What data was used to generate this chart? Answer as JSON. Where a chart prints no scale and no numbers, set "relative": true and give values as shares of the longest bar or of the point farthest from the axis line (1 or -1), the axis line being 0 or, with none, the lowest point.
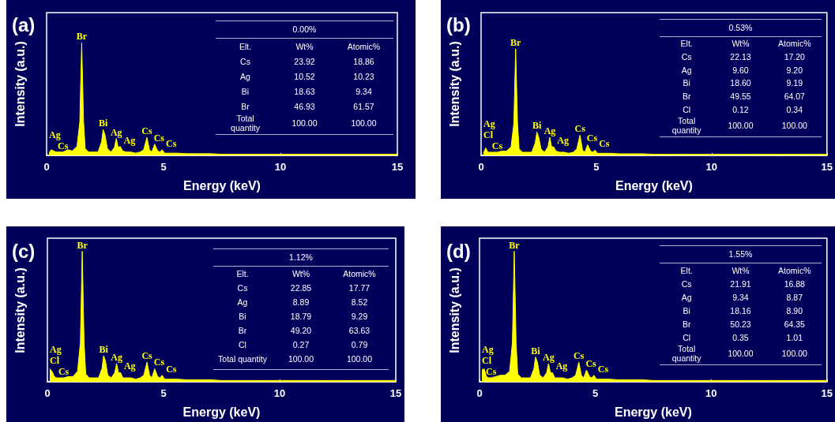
{
  "chart_data": [
    {
      "type": "area",
      "title": "(a)",
      "xlabel": "Energy (keV)",
      "ylabel": "Intensity (a.u.)",
      "relative": true,
      "xlim": [
        0,
        15
      ],
      "xticks": [
        0,
        5,
        10,
        15
      ],
      "x": [
        0.1,
        0.2,
        0.3,
        0.4,
        0.5,
        0.7,
        0.9,
        1.1,
        1.3,
        1.42,
        1.5,
        1.58,
        1.65,
        1.8,
        2.0,
        2.2,
        2.35,
        2.42,
        2.5,
        2.6,
        2.75,
        2.9,
        2.98,
        3.06,
        3.15,
        3.25,
        3.4,
        3.6,
        3.8,
        4.0,
        4.15,
        4.29,
        4.4,
        4.5,
        4.62,
        4.75,
        4.85,
        4.94,
        5.05,
        5.3,
        5.6,
        6,
        6.5,
        7,
        7.5,
        8,
        9,
        10,
        11,
        12,
        13,
        14,
        15
      ],
      "series": [
        {
          "color": "#ffff00",
          "values": [
            0.02,
            0.05,
            0.04,
            0.03,
            0.03,
            0.03,
            0.05,
            0.04,
            0.08,
            0.3,
            1,
            0.3,
            0.06,
            0.03,
            0.03,
            0.03,
            0.12,
            0.23,
            0.18,
            0.06,
            0.03,
            0.07,
            0.15,
            0.07,
            0.08,
            0.04,
            0.03,
            0.03,
            0.02,
            0.03,
            0.05,
            0.16,
            0.05,
            0.03,
            0.1,
            0.04,
            0.03,
            0.05,
            0.02,
            0.02,
            0.02,
            0.015,
            0.015,
            0.015,
            0.01,
            0.01,
            0.01,
            0.01,
            0.01,
            0.01,
            0.01,
            0.01,
            0.01
          ]
        }
      ],
      "annotations": [
        {
          "text": "Br",
          "x": 1.5,
          "y": 1
        },
        {
          "text": "Bi",
          "x": 2.42,
          "y": 0.23
        },
        {
          "text": "Ag",
          "x": 2.98,
          "y": 0.15
        },
        {
          "text": "Ag",
          "x": 3.15,
          "y": 0.08
        },
        {
          "text": "Cs",
          "x": 4.29,
          "y": 0.16
        },
        {
          "text": "Cs",
          "x": 4.62,
          "y": 0.1
        },
        {
          "text": "Cs",
          "x": 4.94,
          "y": 0.05
        },
        {
          "text": "Cs",
          "x": 0.7,
          "y": 0.03
        },
        {
          "text": "Ag",
          "x": 0.2,
          "y": 0.05
        },
        "0.00%",
        "Elt.",
        "Wt%",
        "Atomic%",
        "Cs",
        "23.92",
        "18.86",
        "Ag",
        "10.52",
        "10.23",
        "Bi",
        "18.63",
        "9.34",
        "Br",
        "46.93",
        "61.57",
        "Total quantity",
        "100.00",
        "100.00"
      ]
    },
    {
      "type": "area",
      "title": "(b)",
      "xlabel": "Energy (keV)",
      "ylabel": "Intensity (a.u.)",
      "relative": true,
      "xlim": [
        0,
        15
      ],
      "xticks": [
        0,
        5,
        10,
        15
      ],
      "x": [
        0.1,
        0.2,
        0.3,
        0.4,
        0.5,
        0.7,
        0.9,
        1.1,
        1.3,
        1.42,
        1.5,
        1.58,
        1.65,
        1.8,
        2.0,
        2.2,
        2.35,
        2.42,
        2.5,
        2.6,
        2.75,
        2.9,
        2.98,
        3.06,
        3.15,
        3.25,
        3.4,
        3.6,
        3.8,
        4.0,
        4.15,
        4.29,
        4.4,
        4.5,
        4.62,
        4.75,
        4.85,
        4.94,
        5.05,
        5.3,
        5.6,
        6,
        6.5,
        7,
        7.5,
        8,
        9,
        10,
        11,
        12,
        13,
        14,
        15
      ],
      "series": [
        {
          "color": "#ffff00",
          "values": [
            0.02,
            0.07,
            0.03,
            0.03,
            0.03,
            0.03,
            0.04,
            0.04,
            0.08,
            0.3,
            1,
            0.3,
            0.06,
            0.03,
            0.03,
            0.03,
            0.12,
            0.22,
            0.17,
            0.06,
            0.03,
            0.08,
            0.17,
            0.08,
            0.08,
            0.04,
            0.03,
            0.03,
            0.02,
            0.03,
            0.06,
            0.19,
            0.05,
            0.03,
            0.1,
            0.04,
            0.03,
            0.05,
            0.02,
            0.02,
            0.02,
            0.015,
            0.015,
            0.015,
            0.01,
            0.01,
            0.01,
            0.01,
            0.01,
            0.01,
            0.01,
            0.01,
            0.01
          ]
        }
      ],
      "annotations": [
        {
          "text": "Br",
          "x": 1.5,
          "y": 1
        },
        {
          "text": "Bi",
          "x": 2.42,
          "y": 0.22
        },
        {
          "text": "Ag",
          "x": 2.98,
          "y": 0.17
        },
        {
          "text": "Ag",
          "x": 3.15,
          "y": 0.08
        },
        {
          "text": "Cs",
          "x": 4.29,
          "y": 0.19
        },
        {
          "text": "Cs",
          "x": 4.62,
          "y": 0.1
        },
        {
          "text": "Cs",
          "x": 4.94,
          "y": 0.05
        },
        {
          "text": "Cs",
          "x": 0.7,
          "y": 0.03
        },
        {
          "text": "Cl",
          "x": 0.2,
          "y": 0.07
        },
        {
          "text": "Ag",
          "x": 0.3,
          "y": 0.03
        },
        "0.53%",
        "Elt.",
        "Wt%",
        "Atomic%",
        "Cs",
        "22.13",
        "17.20",
        "Ag",
        "9.60",
        "9.20",
        "Bi",
        "18.60",
        "9.19",
        "Br",
        "49.55",
        "64.07",
        "Cl",
        "0.12",
        "0.34",
        "Total quantity",
        "100.00",
        "100.00"
      ]
    },
    {
      "type": "area",
      "title": "(c)",
      "xlabel": "Energy (keV)",
      "ylabel": "Intensity (a.u.)",
      "relative": true,
      "xlim": [
        0,
        15
      ],
      "xticks": [
        0,
        5,
        10,
        15
      ],
      "x": [
        0.1,
        0.2,
        0.3,
        0.4,
        0.5,
        0.7,
        0.9,
        1.1,
        1.3,
        1.42,
        1.5,
        1.58,
        1.65,
        1.8,
        2.0,
        2.2,
        2.35,
        2.42,
        2.5,
        2.6,
        2.75,
        2.9,
        2.98,
        3.06,
        3.15,
        3.25,
        3.4,
        3.6,
        3.8,
        4.0,
        4.15,
        4.29,
        4.4,
        4.5,
        4.62,
        4.75,
        4.85,
        4.94,
        5.05,
        5.3,
        5.6,
        6,
        6.5,
        7,
        7.5,
        8,
        9,
        10,
        11,
        12,
        13,
        14,
        15
      ],
      "series": [
        {
          "color": "#ffff00",
          "values": [
            0.1,
            0.08,
            0.04,
            0.03,
            0.03,
            0.03,
            0.04,
            0.04,
            0.08,
            0.3,
            1,
            0.3,
            0.06,
            0.03,
            0.03,
            0.03,
            0.1,
            0.2,
            0.16,
            0.05,
            0.03,
            0.07,
            0.14,
            0.07,
            0.07,
            0.03,
            0.03,
            0.03,
            0.02,
            0.03,
            0.05,
            0.15,
            0.05,
            0.03,
            0.1,
            0.04,
            0.03,
            0.05,
            0.02,
            0.02,
            0.02,
            0.015,
            0.015,
            0.015,
            0.01,
            0.01,
            0.01,
            0.01,
            0.01,
            0.01,
            0.01,
            0.01,
            0.01
          ]
        }
      ],
      "annotations": [
        {
          "text": "Br",
          "x": 1.5,
          "y": 1
        },
        {
          "text": "Bi",
          "x": 2.42,
          "y": 0.2
        },
        {
          "text": "Ag",
          "x": 2.98,
          "y": 0.14
        },
        {
          "text": "Ag",
          "x": 3.15,
          "y": 0.07
        },
        {
          "text": "Cs",
          "x": 4.29,
          "y": 0.15
        },
        {
          "text": "Cs",
          "x": 4.62,
          "y": 0.1
        },
        {
          "text": "Cs",
          "x": 4.94,
          "y": 0.05
        },
        {
          "text": "Cs",
          "x": 0.7,
          "y": 0.03
        },
        {
          "text": "Cl",
          "x": 0.1,
          "y": 0.1
        },
        {
          "text": "Ag",
          "x": 0.3,
          "y": 0.04
        },
        "1.12%",
        "Elt.",
        "Wt%",
        "Atomic%",
        "Cs",
        "22.85",
        "17.77",
        "Ag",
        "8.89",
        "8.52",
        "Bi",
        "18.79",
        "9.29",
        "Br",
        "49.20",
        "63.63",
        "Cl",
        "0.27",
        "0.79",
        "Total quantity",
        "100.00",
        "100.00"
      ]
    },
    {
      "type": "area",
      "title": "(d)",
      "xlabel": "Energy (keV)",
      "ylabel": "Intensity (a.u.)",
      "relative": true,
      "xlim": [
        0,
        15
      ],
      "xticks": [
        0,
        5,
        10,
        15
      ],
      "x": [
        0.1,
        0.2,
        0.3,
        0.4,
        0.5,
        0.7,
        0.9,
        1.1,
        1.3,
        1.42,
        1.5,
        1.58,
        1.65,
        1.8,
        2.0,
        2.2,
        2.35,
        2.42,
        2.5,
        2.6,
        2.75,
        2.9,
        2.98,
        3.06,
        3.15,
        3.25,
        3.4,
        3.6,
        3.8,
        4.0,
        4.15,
        4.29,
        4.4,
        4.5,
        4.62,
        4.75,
        4.85,
        4.94,
        5.05,
        5.3,
        5.6,
        6,
        6.5,
        7,
        7.5,
        8,
        9,
        10,
        11,
        12,
        13,
        14,
        15
      ],
      "series": [
        {
          "color": "#ffff00",
          "values": [
            0.09,
            0.1,
            0.04,
            0.03,
            0.03,
            0.04,
            0.05,
            0.05,
            0.08,
            0.3,
            1,
            0.3,
            0.06,
            0.03,
            0.03,
            0.03,
            0.1,
            0.19,
            0.15,
            0.05,
            0.03,
            0.07,
            0.14,
            0.07,
            0.07,
            0.03,
            0.03,
            0.03,
            0.02,
            0.03,
            0.05,
            0.15,
            0.05,
            0.03,
            0.09,
            0.04,
            0.03,
            0.05,
            0.02,
            0.02,
            0.02,
            0.015,
            0.015,
            0.015,
            0.01,
            0.01,
            0.01,
            0.01,
            0.01,
            0.01,
            0.01,
            0.01,
            0.01
          ]
        }
      ],
      "annotations": [
        {
          "text": "Br",
          "x": 1.5,
          "y": 1
        },
        {
          "text": "Bi",
          "x": 2.42,
          "y": 0.19
        },
        {
          "text": "Ag",
          "x": 2.98,
          "y": 0.14
        },
        {
          "text": "Ag",
          "x": 3.15,
          "y": 0.07
        },
        {
          "text": "Cs",
          "x": 4.29,
          "y": 0.15
        },
        {
          "text": "Cs",
          "x": 4.62,
          "y": 0.09
        },
        {
          "text": "Cs",
          "x": 4.94,
          "y": 0.05
        },
        {
          "text": "Cs",
          "x": 0.5,
          "y": 0.03
        },
        {
          "text": "Cl",
          "x": 0.1,
          "y": 0.09
        },
        {
          "text": "Ag",
          "x": 0.2,
          "y": 0.1
        },
        "1.55%",
        "Elt.",
        "Wt%",
        "Atomic%",
        "Cs",
        "21.91",
        "16.88",
        "Ag",
        "9.34",
        "8.87",
        "Bi",
        "18.16",
        "8.90",
        "Br",
        "50.23",
        "64.35",
        "Cl",
        "0.35",
        "1.01",
        "Total quantity",
        "100.00",
        "100.00"
      ]
    }
  ]
}
